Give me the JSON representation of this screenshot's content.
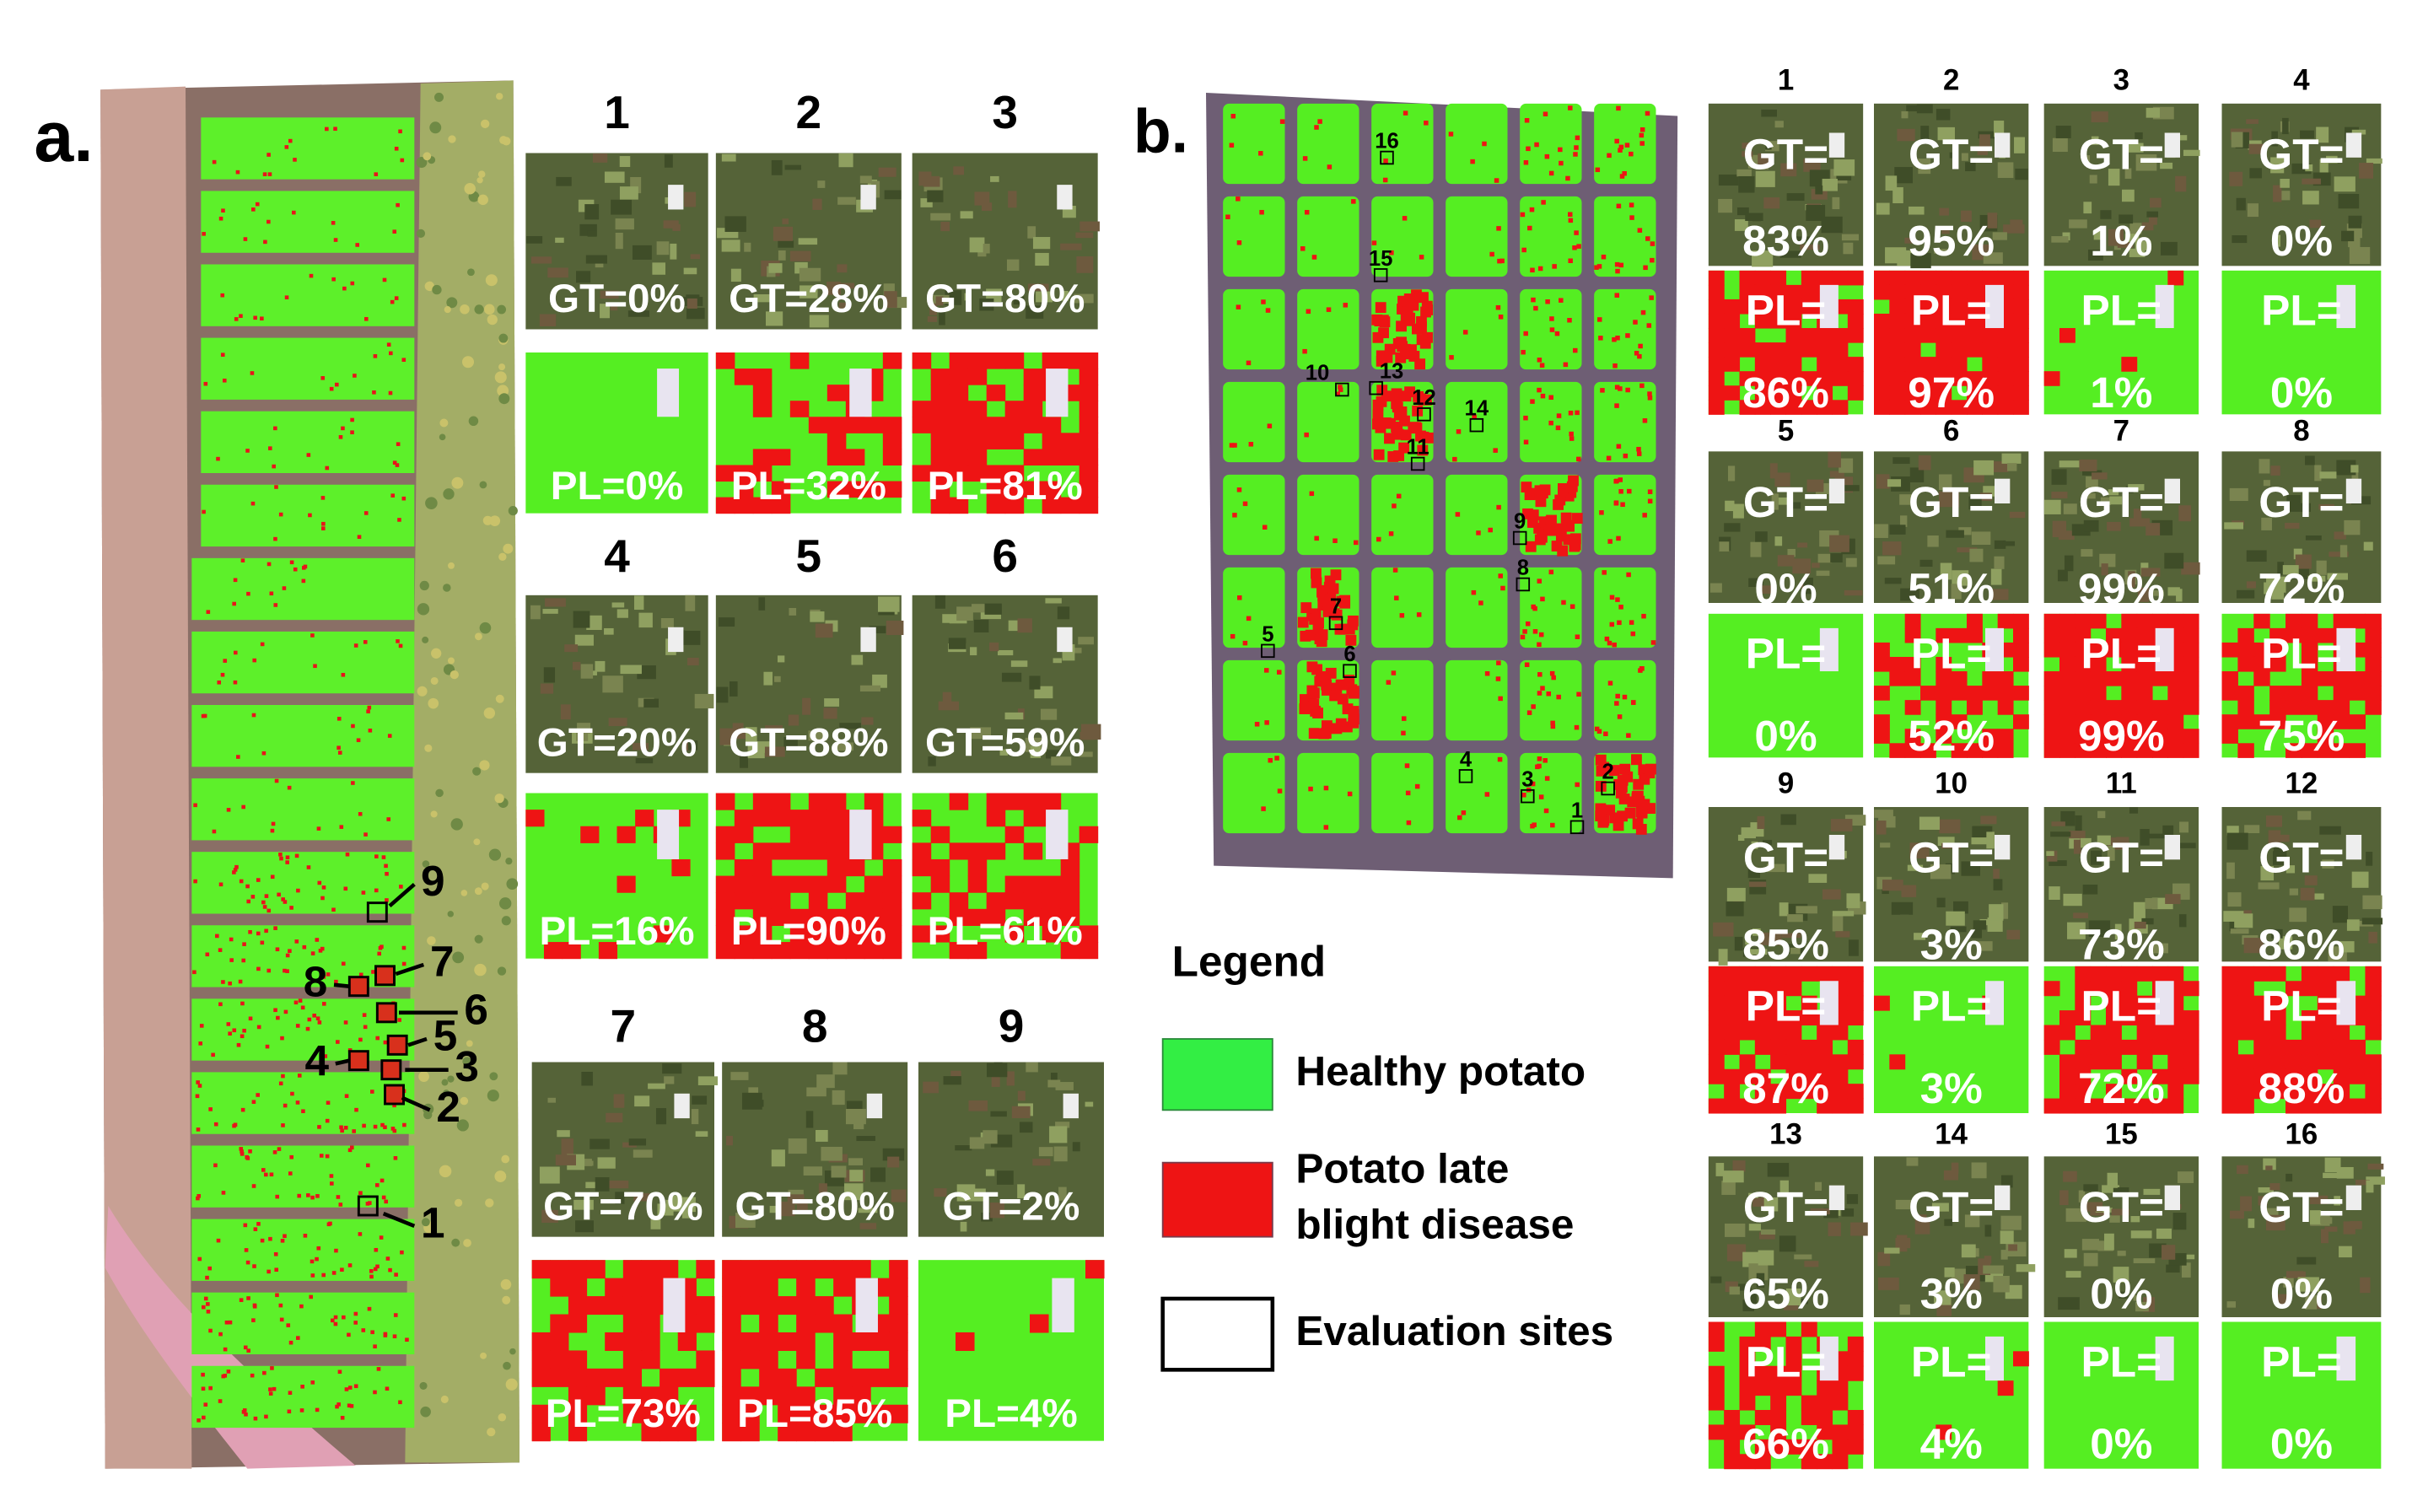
{
  "panel_a": {
    "label": "a.",
    "site_labels": [
      "1",
      "2",
      "3",
      "4",
      "5",
      "6",
      "7",
      "8",
      "9"
    ],
    "tiles": [
      {
        "number": "1",
        "gt": "GT=0%",
        "pl": "PL=0%"
      },
      {
        "number": "2",
        "gt": "GT=28%",
        "pl": "PL=32%"
      },
      {
        "number": "3",
        "gt": "GT=80%",
        "pl": "PL=81%"
      },
      {
        "number": "4",
        "gt": "GT=20%",
        "pl": "PL=16%"
      },
      {
        "number": "5",
        "gt": "GT=88%",
        "pl": "PL=90%"
      },
      {
        "number": "6",
        "gt": "GT=59%",
        "pl": "PL=61%"
      },
      {
        "number": "7",
        "gt": "GT=70%",
        "pl": "PL=73%"
      },
      {
        "number": "8",
        "gt": "GT=80%",
        "pl": "PL=85%"
      },
      {
        "number": "9",
        "gt": "GT=2%",
        "pl": "PL=4%"
      }
    ]
  },
  "panel_b": {
    "label": "b.",
    "site_labels": [
      "1",
      "2",
      "3",
      "4",
      "5",
      "6",
      "7",
      "8",
      "9",
      "10",
      "11",
      "12",
      "13",
      "14",
      "15",
      "16"
    ],
    "tiles": [
      {
        "number": "1",
        "gt": [
          "GT=",
          "83%"
        ],
        "pl": [
          "PL=",
          "86%"
        ]
      },
      {
        "number": "2",
        "gt": [
          "GT=",
          "95%"
        ],
        "pl": [
          "PL=",
          "97%"
        ]
      },
      {
        "number": "3",
        "gt": [
          "GT=",
          "1%"
        ],
        "pl": [
          "PL=",
          "1%"
        ]
      },
      {
        "number": "4",
        "gt": [
          "GT=",
          "0%"
        ],
        "pl": [
          "PL=",
          "0%"
        ]
      },
      {
        "number": "5",
        "gt": [
          "GT=",
          "0%"
        ],
        "pl": [
          "PL=",
          "0%"
        ]
      },
      {
        "number": "6",
        "gt": [
          "GT=",
          "51%"
        ],
        "pl": [
          "PL=",
          "52%"
        ]
      },
      {
        "number": "7",
        "gt": [
          "GT=",
          "99%"
        ],
        "pl": [
          "PL=",
          "99%"
        ]
      },
      {
        "number": "8",
        "gt": [
          "GT=",
          "72%"
        ],
        "pl": [
          "PL=",
          "75%"
        ]
      },
      {
        "number": "9",
        "gt": [
          "GT=",
          "85%"
        ],
        "pl": [
          "PL=",
          "87%"
        ]
      },
      {
        "number": "10",
        "gt": [
          "GT=",
          "3%"
        ],
        "pl": [
          "PL=",
          "3%"
        ]
      },
      {
        "number": "11",
        "gt": [
          "GT=",
          "73%"
        ],
        "pl": [
          "PL=",
          "72%"
        ]
      },
      {
        "number": "12",
        "gt": [
          "GT=",
          "86%"
        ],
        "pl": [
          "PL=",
          "88%"
        ]
      },
      {
        "number": "13",
        "gt": [
          "GT=",
          "65%"
        ],
        "pl": [
          "PL=",
          "66%"
        ]
      },
      {
        "number": "14",
        "gt": [
          "GT=",
          "3%"
        ],
        "pl": [
          "PL=",
          "4%"
        ]
      },
      {
        "number": "15",
        "gt": [
          "GT=",
          "0%"
        ],
        "pl": [
          "PL=",
          "0%"
        ]
      },
      {
        "number": "16",
        "gt": [
          "GT=",
          "0%"
        ],
        "pl": [
          "PL=",
          "0%"
        ]
      }
    ]
  },
  "legend": {
    "title": "Legend",
    "items": [
      {
        "lines": [
          "Healthy potato"
        ]
      },
      {
        "lines": [
          "Potato late",
          "blight disease"
        ]
      },
      {
        "lines": [
          "Evaluation sites"
        ]
      }
    ]
  }
}
